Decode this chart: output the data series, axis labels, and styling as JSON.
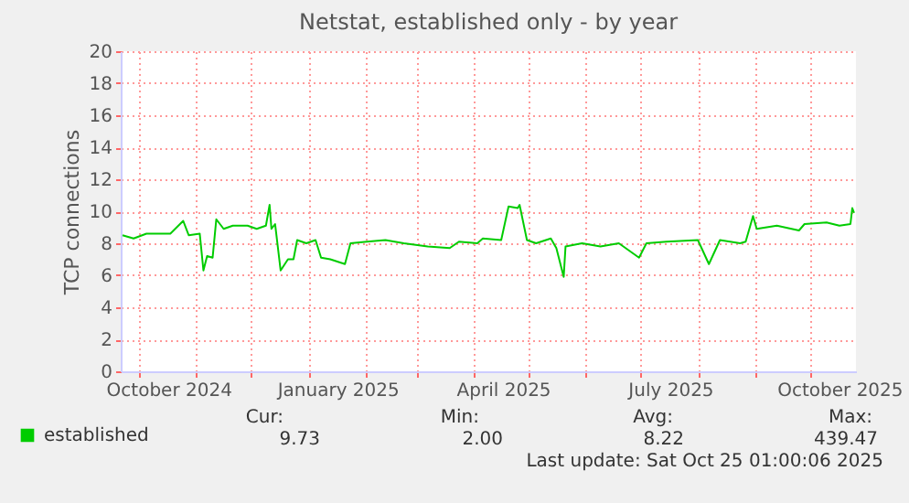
{
  "chart_data": {
    "type": "line",
    "title": "Netstat, established only - by year",
    "ylabel": "TCP connections",
    "x": [
      "2024-09-22",
      "2024-09-28",
      "2024-10-05",
      "2024-10-18",
      "2024-10-25",
      "2024-10-28",
      "2024-11-03",
      "2024-11-05",
      "2024-11-07",
      "2024-11-10",
      "2024-11-12",
      "2024-11-16",
      "2024-11-21",
      "2024-11-29",
      "2024-12-04",
      "2024-12-09",
      "2024-12-11",
      "2024-12-12",
      "2024-12-14",
      "2024-12-17",
      "2024-12-21",
      "2024-12-24",
      "2024-12-26",
      "2024-12-31",
      "2025-01-05",
      "2025-01-08",
      "2025-01-13",
      "2025-01-21",
      "2025-01-24",
      "2025-02-02",
      "2025-02-12",
      "2025-02-22",
      "2025-03-07",
      "2025-03-19",
      "2025-03-24",
      "2025-04-03",
      "2025-04-06",
      "2025-04-16",
      "2025-04-20",
      "2025-04-25",
      "2025-04-26",
      "2025-04-30",
      "2025-05-05",
      "2025-05-13",
      "2025-05-16",
      "2025-05-20",
      "2025-05-21",
      "2025-05-30",
      "2025-06-09",
      "2025-06-19",
      "2025-06-30",
      "2025-07-04",
      "2025-07-15",
      "2025-08-01",
      "2025-08-07",
      "2025-08-13",
      "2025-08-24",
      "2025-08-27",
      "2025-08-31",
      "2025-09-02",
      "2025-09-13",
      "2025-09-25",
      "2025-09-28",
      "2025-10-10",
      "2025-10-17",
      "2025-10-23",
      "2025-10-24",
      "2025-10-25"
    ],
    "series": [
      {
        "name": "established",
        "color": "#00cc00",
        "values": [
          8.5,
          8.3,
          8.6,
          8.6,
          9.4,
          8.5,
          8.6,
          6.3,
          7.2,
          7.1,
          9.5,
          8.9,
          9.1,
          9.1,
          8.9,
          9.1,
          10.4,
          8.9,
          9.2,
          6.3,
          7.0,
          7.0,
          8.2,
          8.0,
          8.2,
          7.1,
          7.0,
          6.7,
          8.0,
          8.1,
          8.2,
          8.0,
          7.8,
          7.7,
          8.1,
          8.0,
          8.3,
          8.2,
          10.3,
          10.2,
          10.4,
          8.2,
          8.0,
          8.3,
          7.7,
          5.9,
          7.8,
          8.0,
          7.8,
          8.0,
          7.1,
          8.0,
          8.1,
          8.2,
          6.7,
          8.2,
          8.0,
          8.1,
          9.7,
          8.9,
          9.1,
          8.8,
          9.2,
          9.3,
          9.1,
          9.2,
          10.2,
          9.9
        ]
      }
    ],
    "xlim": [
      "2024-09-21",
      "2025-10-26"
    ],
    "xticks": [
      {
        "value": "2024-10-01",
        "label": null
      },
      {
        "value": "2024-10-17",
        "label": "October 2024"
      },
      {
        "value": "2024-11-01",
        "label": null
      },
      {
        "value": "2024-12-01",
        "label": null
      },
      {
        "value": "2025-01-01",
        "label": null
      },
      {
        "value": "2025-01-17",
        "label": "January 2025"
      },
      {
        "value": "2025-02-01",
        "label": null
      },
      {
        "value": "2025-03-01",
        "label": null
      },
      {
        "value": "2025-04-01",
        "label": null
      },
      {
        "value": "2025-04-17",
        "label": "April 2025"
      },
      {
        "value": "2025-05-01",
        "label": null
      },
      {
        "value": "2025-06-01",
        "label": null
      },
      {
        "value": "2025-07-01",
        "label": null
      },
      {
        "value": "2025-07-17",
        "label": "July 2025"
      },
      {
        "value": "2025-08-01",
        "label": null
      },
      {
        "value": "2025-09-01",
        "label": null
      },
      {
        "value": "2025-10-01",
        "label": null
      },
      {
        "value": "2025-10-17",
        "label": "October 2025"
      }
    ],
    "ylim": [
      0,
      20
    ],
    "yticks": [
      0,
      2,
      4,
      6,
      8,
      10,
      12,
      14,
      16,
      18,
      20
    ],
    "grid": true,
    "legend": "bottom left",
    "marker": "none",
    "line_style": "solid",
    "annotations": [
      "Cur:",
      "Min:",
      "Avg:",
      "Max:",
      "9.73",
      "2.00",
      "8.22",
      "439.47",
      "Last update: Sat Oct 25 01:00:06 2025"
    ]
  }
}
